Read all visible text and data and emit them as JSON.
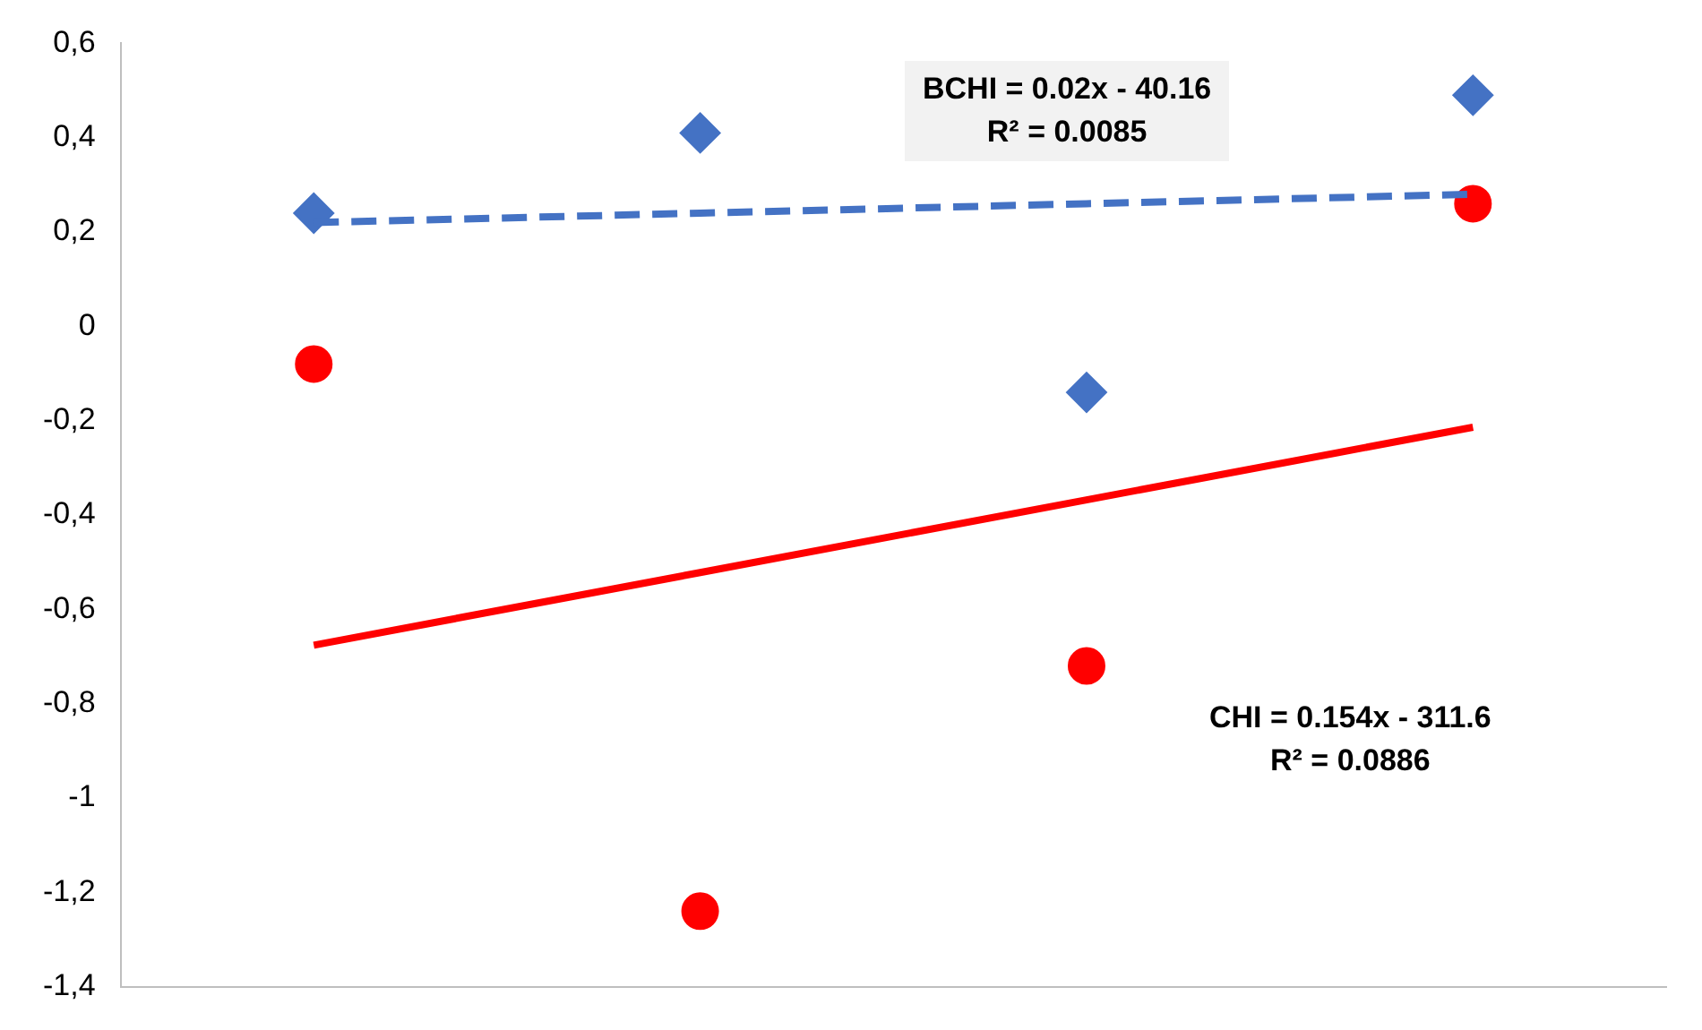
{
  "chart_data": {
    "type": "scatter",
    "categories": [
      null,
      null,
      null,
      null
    ],
    "series": [
      {
        "marker": "diamond",
        "color": "#4472c4",
        "values": [
          0.24,
          0.41,
          -0.14,
          0.49
        ]
      },
      {
        "marker": "circle",
        "color": "#ff0000",
        "values": [
          -0.08,
          -1.24,
          -0.72,
          0.26
        ]
      },
      {
        "type": "line",
        "marker": "none",
        "line_style": "dashed",
        "color": "#4472c4",
        "values": [
          0.22,
          0.24,
          0.26,
          0.28
        ]
      },
      {
        "type": "line",
        "marker": "none",
        "line_style": "solid",
        "color": "#ff0000",
        "values": [
          -0.676,
          -0.522,
          -0.368,
          -0.214
        ]
      }
    ],
    "ylim": [
      -1.4,
      0.6
    ],
    "yticks": [
      {
        "value": -1.4,
        "label": "-1,4"
      },
      {
        "value": -1.2,
        "label": "-1,2"
      },
      {
        "value": -1,
        "label": "-1"
      },
      {
        "value": -0.8,
        "label": "-0,8"
      },
      {
        "value": -0.6,
        "label": "-0,6"
      },
      {
        "value": -0.4,
        "label": "-0,4"
      },
      {
        "value": -0.2,
        "label": "-0,2"
      },
      {
        "value": 0,
        "label": "0"
      },
      {
        "value": 0.2,
        "label": "0,2"
      },
      {
        "value": 0.4,
        "label": "0,4"
      },
      {
        "value": 0.6,
        "label": "0,6"
      }
    ],
    "grid": false,
    "legend": false,
    "tick_labels": "y",
    "annotations": [
      "BCHI = 0.02x - 40.16\nR² = 0.0085",
      "CHI = 0.154x - 311.6\nR² = 0.0886"
    ]
  }
}
